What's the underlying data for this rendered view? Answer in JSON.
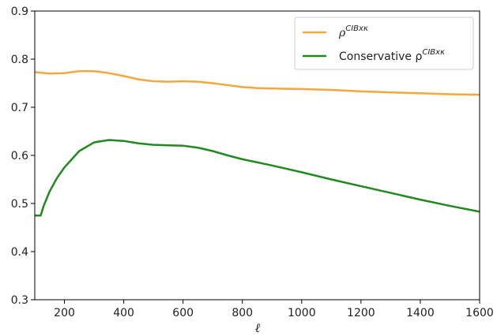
{
  "chart_data": {
    "type": "line",
    "title": "",
    "xlabel": "ℓ",
    "ylabel": "",
    "xlim": [
      100,
      1600
    ],
    "ylim": [
      0.3,
      0.9
    ],
    "x_ticks": [
      200,
      400,
      600,
      800,
      1000,
      1200,
      1400,
      1600
    ],
    "y_ticks": [
      0.3,
      0.4,
      0.5,
      0.6,
      0.7,
      0.8,
      0.9
    ],
    "grid": false,
    "legend_position": "top-right",
    "series": [
      {
        "name": "ρCIBxκ",
        "legend_base": "ρ",
        "legend_sup": "CIBxκ",
        "color": "#f5a73b",
        "x": [
          100,
          150,
          200,
          250,
          300,
          350,
          400,
          450,
          500,
          550,
          600,
          650,
          700,
          750,
          800,
          850,
          900,
          1000,
          1100,
          1200,
          1300,
          1400,
          1500,
          1600
        ],
        "y": [
          0.773,
          0.77,
          0.771,
          0.775,
          0.775,
          0.771,
          0.765,
          0.758,
          0.754,
          0.753,
          0.754,
          0.753,
          0.75,
          0.746,
          0.742,
          0.74,
          0.739,
          0.738,
          0.736,
          0.733,
          0.731,
          0.729,
          0.727,
          0.726
        ]
      },
      {
        "name": "Conservative ρCIBxκ",
        "legend_base": "Conservative ρ",
        "legend_sup": "CIBxκ",
        "color": "#1f8b1f",
        "x": [
          100,
          120,
          130,
          150,
          175,
          200,
          250,
          300,
          350,
          400,
          450,
          500,
          550,
          600,
          650,
          700,
          750,
          800,
          900,
          1000,
          1100,
          1200,
          1300,
          1400,
          1500,
          1600
        ],
        "y": [
          0.475,
          0.475,
          0.495,
          0.525,
          0.553,
          0.575,
          0.609,
          0.627,
          0.632,
          0.63,
          0.625,
          0.622,
          0.621,
          0.62,
          0.616,
          0.609,
          0.6,
          0.592,
          0.579,
          0.565,
          0.55,
          0.536,
          0.522,
          0.508,
          0.495,
          0.483
        ]
      }
    ]
  }
}
